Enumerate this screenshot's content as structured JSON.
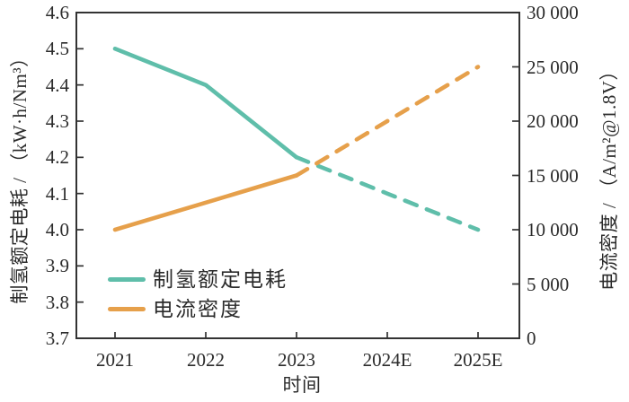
{
  "chart_data": {
    "type": "line",
    "title": "",
    "xlabel": "时间",
    "x_categories": [
      "2021",
      "2022",
      "2023",
      "2024E",
      "2025E"
    ],
    "left_axis": {
      "label": "制氢额定电耗 / （kW·h/Nm³）",
      "range": [
        3.7,
        4.6
      ],
      "tick_values": [
        3.7,
        3.8,
        3.9,
        4.0,
        4.1,
        4.2,
        4.3,
        4.4,
        4.5,
        4.6
      ],
      "tick_labels": [
        "3.7",
        "3.8",
        "3.9",
        "4.0",
        "4.1",
        "4.2",
        "4.3",
        "4.4",
        "4.5",
        "4.6"
      ]
    },
    "right_axis": {
      "label": "电流密度 / （A/m²@1.8V）",
      "range": [
        0,
        30000
      ],
      "tick_values": [
        0,
        5000,
        10000,
        15000,
        20000,
        25000,
        30000
      ],
      "tick_labels": [
        "0",
        "5 000",
        "10 000",
        "15 000",
        "20 000",
        "25 000",
        "30 000"
      ]
    },
    "series": [
      {
        "name": "制氢额定电耗",
        "axis": "left",
        "color": "#5fbeaa",
        "values": [
          4.5,
          4.4,
          4.2,
          4.1,
          4.0
        ],
        "dashed_from_index": 2
      },
      {
        "name": "电流密度",
        "axis": "right",
        "color": "#e6a04b",
        "values": [
          10000,
          12500,
          15000,
          20000,
          25000
        ],
        "dashed_from_index": 2
      }
    ],
    "legend": {
      "position": "lower-left-inside",
      "entries": [
        "制氢额定电耗",
        "电流密度"
      ]
    },
    "grid": false,
    "axis_color": "#333333"
  }
}
